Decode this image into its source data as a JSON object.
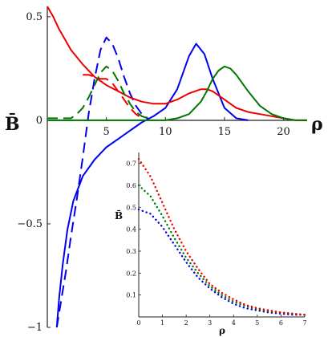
{
  "chart_data": [
    {
      "type": "line",
      "title": "",
      "xlabel": "ρ",
      "ylabel": "B̄",
      "xlim": [
        0,
        22
      ],
      "ylim": [
        -1,
        0.55
      ],
      "xticks": [
        "5",
        "10",
        "15",
        "20"
      ],
      "yticks": [
        "0.5",
        "0",
        "−0.5",
        "−1"
      ],
      "grid": false,
      "legend": "none",
      "series": [
        {
          "color": "#0000ee",
          "style": "dashed",
          "x": [
            0.8,
            1.2,
            1.6,
            2.0,
            2.5,
            3.0,
            3.5,
            4.0,
            4.5,
            5.0,
            5.5,
            6.0,
            6.5,
            7.0,
            7.5,
            8.0,
            8.5
          ],
          "y": [
            -1.0,
            -0.86,
            -0.72,
            -0.56,
            -0.38,
            -0.18,
            0.03,
            0.2,
            0.34,
            0.4,
            0.37,
            0.3,
            0.21,
            0.13,
            0.07,
            0.03,
            0.01
          ]
        },
        {
          "color": "#0000ee",
          "style": "solid",
          "x": [
            0.8,
            1.0,
            1.3,
            1.7,
            2.2,
            3.0,
            4.0,
            5.0,
            6.0,
            7.0,
            8.0,
            9.0,
            10.0,
            11.0,
            12.0,
            12.6,
            13.3,
            14.0,
            15.0,
            16.0,
            17.0
          ],
          "y": [
            -1.0,
            -0.86,
            -0.7,
            -0.53,
            -0.39,
            -0.27,
            -0.19,
            -0.13,
            -0.09,
            -0.05,
            -0.01,
            0.02,
            0.06,
            0.15,
            0.31,
            0.37,
            0.32,
            0.2,
            0.06,
            0.01,
            0.0
          ]
        },
        {
          "color": "#ee0000",
          "style": "dashed",
          "x": [
            3.0,
            3.5,
            4.0,
            4.5,
            5.0,
            5.5,
            6.0,
            6.5,
            7.0,
            7.5,
            8.0
          ],
          "y": [
            0.22,
            0.22,
            0.21,
            0.2,
            0.2,
            0.18,
            0.14,
            0.1,
            0.06,
            0.03,
            0.01
          ]
        },
        {
          "color": "#ee0000",
          "style": "solid",
          "x": [
            0.0,
            0.5,
            1.0,
            1.5,
            2.0,
            3.0,
            4.0,
            5.0,
            6.0,
            7.0,
            8.0,
            9.0,
            10.0,
            11.0,
            12.0,
            13.0,
            13.5,
            14.0,
            15.0,
            16.0,
            17.0,
            18.0,
            19.0,
            20.0,
            21.0,
            22.0
          ],
          "y": [
            0.55,
            0.5,
            0.44,
            0.39,
            0.34,
            0.27,
            0.21,
            0.17,
            0.14,
            0.11,
            0.09,
            0.08,
            0.08,
            0.1,
            0.13,
            0.15,
            0.15,
            0.14,
            0.1,
            0.06,
            0.04,
            0.03,
            0.02,
            0.01,
            0.0,
            0.0
          ]
        },
        {
          "color": "#007700",
          "style": "dashed",
          "x": [
            0.0,
            1.0,
            2.0,
            2.5,
            3.0,
            3.5,
            4.0,
            4.5,
            5.0,
            5.5,
            6.0,
            6.5,
            7.0,
            7.5,
            8.0,
            8.5
          ],
          "y": [
            0.01,
            0.01,
            0.01,
            0.03,
            0.06,
            0.11,
            0.17,
            0.23,
            0.26,
            0.24,
            0.19,
            0.13,
            0.08,
            0.04,
            0.02,
            0.01
          ]
        },
        {
          "color": "#007700",
          "style": "solid",
          "x": [
            0.0,
            2.0,
            4.0,
            6.0,
            8.0,
            10.0,
            11.0,
            12.0,
            13.0,
            13.5,
            14.0,
            14.5,
            15.0,
            15.5,
            16.0,
            17.0,
            18.0,
            19.0,
            20.0,
            21.0,
            22.0
          ],
          "y": [
            0.0,
            0.0,
            0.0,
            0.0,
            0.0,
            0.0,
            0.01,
            0.03,
            0.09,
            0.14,
            0.2,
            0.24,
            0.26,
            0.25,
            0.22,
            0.14,
            0.07,
            0.03,
            0.01,
            0.0,
            0.0
          ]
        }
      ]
    },
    {
      "type": "scatter",
      "title": "",
      "xlabel": "ρ",
      "ylabel": "B̄",
      "xlim": [
        0,
        7
      ],
      "ylim": [
        0,
        0.75
      ],
      "xticks": [
        "0",
        "1",
        "2",
        "3",
        "4",
        "5",
        "6",
        "7"
      ],
      "yticks": [
        "0.1",
        "0.2",
        "0.3",
        "0.4",
        "0.5",
        "0.6",
        "0.7"
      ],
      "grid": false,
      "legend": "none",
      "series": [
        {
          "color": "#0000ee",
          "style": "dotted",
          "x": [
            0.0,
            0.5,
            1.0,
            1.5,
            2.0,
            2.5,
            3.0,
            3.5,
            4.0,
            4.5,
            5.0,
            5.5,
            6.0,
            6.5,
            7.0
          ],
          "y": [
            0.49,
            0.47,
            0.41,
            0.33,
            0.25,
            0.18,
            0.13,
            0.09,
            0.06,
            0.04,
            0.03,
            0.02,
            0.015,
            0.01,
            0.01
          ]
        },
        {
          "color": "#007700",
          "style": "dotted",
          "x": [
            0.0,
            0.5,
            1.0,
            1.5,
            2.0,
            2.5,
            3.0,
            3.5,
            4.0,
            4.5,
            5.0,
            5.5,
            6.0,
            6.5,
            7.0
          ],
          "y": [
            0.6,
            0.55,
            0.46,
            0.36,
            0.27,
            0.2,
            0.14,
            0.1,
            0.07,
            0.05,
            0.035,
            0.025,
            0.02,
            0.015,
            0.01
          ]
        },
        {
          "color": "#ee0000",
          "style": "dotted",
          "x": [
            0.0,
            0.5,
            1.0,
            1.5,
            2.0,
            2.5,
            3.0,
            3.5,
            4.0,
            4.5,
            5.0,
            5.5,
            6.0,
            6.5,
            7.0
          ],
          "y": [
            0.72,
            0.64,
            0.52,
            0.4,
            0.3,
            0.22,
            0.15,
            0.11,
            0.08,
            0.055,
            0.04,
            0.03,
            0.02,
            0.015,
            0.01
          ]
        }
      ]
    }
  ]
}
